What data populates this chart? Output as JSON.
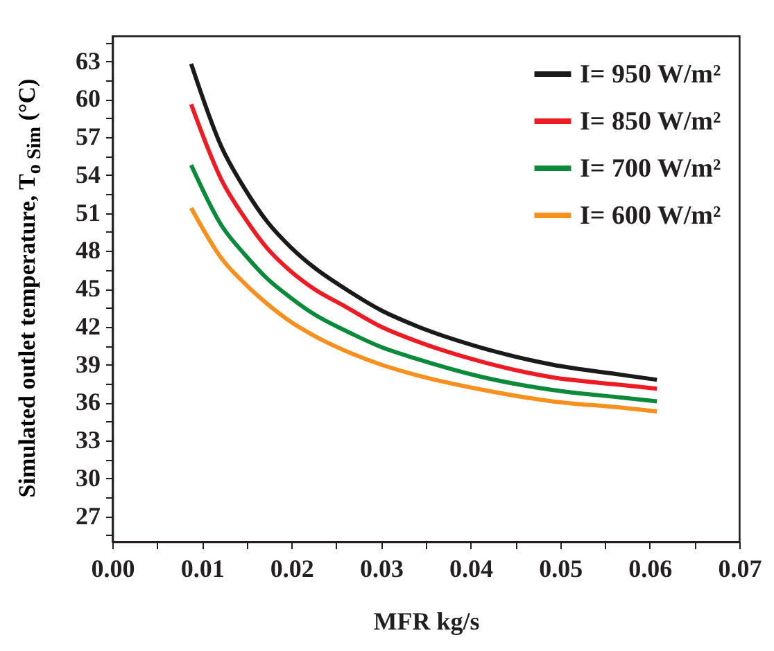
{
  "chart_data": {
    "type": "line",
    "xlabel": "MFR kg/s",
    "ylabel": "Simulated outlet temperature, T$_{o Sim}$ (°C)",
    "x": [
      0.0088,
      0.0122,
      0.0148,
      0.0173,
      0.0199,
      0.0225,
      0.026,
      0.03,
      0.0338,
      0.0414,
      0.0491,
      0.0568,
      0.0608
    ],
    "series": [
      {
        "name": "I= 950 W/m²",
        "color": "#1a1a1a",
        "values": [
          62.8,
          56.2,
          52.9,
          50.3,
          48.3,
          46.7,
          45.0,
          43.3,
          42.1,
          40.3,
          39.0,
          38.2,
          37.8
        ]
      },
      {
        "name": "I= 850 W/m²",
        "color": "#ed1c24",
        "values": [
          59.6,
          53.6,
          50.6,
          48.2,
          46.4,
          45.0,
          43.6,
          42.0,
          40.9,
          39.2,
          38.0,
          37.4,
          37.1
        ]
      },
      {
        "name": "I= 700 W/m²",
        "color": "#0b8a3c",
        "values": [
          54.8,
          50.0,
          47.7,
          45.8,
          44.3,
          43.0,
          41.7,
          40.4,
          39.5,
          38.0,
          37.0,
          36.4,
          36.1
        ]
      },
      {
        "name": "I= 600 W/m²",
        "color": "#f7901e",
        "values": [
          51.4,
          47.4,
          45.4,
          43.8,
          42.4,
          41.3,
          40.1,
          39.0,
          38.2,
          37.0,
          36.1,
          35.6,
          35.3
        ]
      }
    ],
    "xlim": [
      0,
      0.07
    ],
    "xticks": [
      {
        "value": 0,
        "label": "0.00"
      },
      {
        "value": 0.005,
        "label": null
      },
      {
        "value": 0.01,
        "label": "0.01"
      },
      {
        "value": 0.015,
        "label": null
      },
      {
        "value": 0.02,
        "label": "0.02"
      },
      {
        "value": 0.025,
        "label": null
      },
      {
        "value": 0.03,
        "label": "0.03"
      },
      {
        "value": 0.035,
        "label": null
      },
      {
        "value": 0.04,
        "label": "0.04"
      },
      {
        "value": 0.045,
        "label": null
      },
      {
        "value": 0.05,
        "label": "0.05"
      },
      {
        "value": 0.055,
        "label": null
      },
      {
        "value": 0.06,
        "label": "0.06"
      },
      {
        "value": 0.065,
        "label": null
      },
      {
        "value": 0.07,
        "label": "0.07"
      }
    ],
    "ylim": [
      25,
      65
    ],
    "yticks": [
      {
        "value": 25.5,
        "label": null
      },
      27,
      {
        "value": 28.5,
        "label": null
      },
      30,
      {
        "value": 31.5,
        "label": null
      },
      33,
      {
        "value": 34.5,
        "label": null
      },
      36,
      {
        "value": 37.5,
        "label": null
      },
      39,
      {
        "value": 40.5,
        "label": null
      },
      42,
      {
        "value": 43.5,
        "label": null
      },
      45,
      {
        "value": 46.5,
        "label": null
      },
      48,
      {
        "value": 49.5,
        "label": null
      },
      51,
      {
        "value": 52.5,
        "label": null
      },
      54,
      {
        "value": 55.5,
        "label": null
      },
      57,
      {
        "value": 58.5,
        "label": null
      },
      60,
      {
        "value": 61.5,
        "label": null
      },
      63,
      {
        "value": 64.5,
        "label": null
      }
    ],
    "grid": false,
    "legend": "top right",
    "marker": "none",
    "line_style": "solid"
  }
}
